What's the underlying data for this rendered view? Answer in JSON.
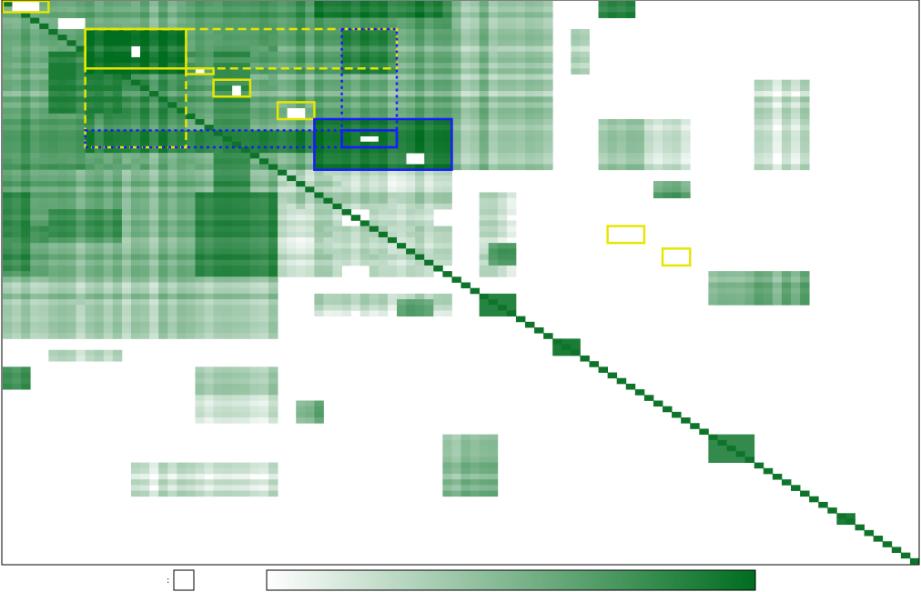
{
  "chart_data": {
    "type": "heatmap",
    "title": "",
    "xlabel": "",
    "ylabel": "",
    "n": 100,
    "colorscale": {
      "low": "#ffffff",
      "high": "#006d1f"
    },
    "value_range": [
      0,
      1
    ],
    "diagonal_value": 0.95,
    "blocks": [
      {
        "rows": [
          0,
          30
        ],
        "cols": [
          0,
          49
        ],
        "value": 0.55
      },
      {
        "rows": [
          0,
          30
        ],
        "cols": [
          49,
          58
        ],
        "value": 0.42
      },
      {
        "rows": [
          0,
          30
        ],
        "cols": [
          58,
          60
        ],
        "value": 0.3
      },
      {
        "rows": [
          0,
          5
        ],
        "cols": [
          20,
          49
        ],
        "value": 0.7
      },
      {
        "rows": [
          0,
          3
        ],
        "cols": [
          34,
          48
        ],
        "value": 0.85
      },
      {
        "rows": [
          5,
          13
        ],
        "cols": [
          9,
          20
        ],
        "value": 0.95
      },
      {
        "rows": [
          5,
          13
        ],
        "cols": [
          20,
          43
        ],
        "value": 0.62
      },
      {
        "rows": [
          5,
          13
        ],
        "cols": [
          37,
          43
        ],
        "value": 0.8
      },
      {
        "rows": [
          13,
          27
        ],
        "cols": [
          9,
          20
        ],
        "value": 0.72
      },
      {
        "rows": [
          13,
          27
        ],
        "cols": [
          20,
          34
        ],
        "value": 0.5
      },
      {
        "rows": [
          21,
          30
        ],
        "cols": [
          34,
          49
        ],
        "value": 0.9
      },
      {
        "rows": [
          23,
          27
        ],
        "cols": [
          9,
          34
        ],
        "value": 0.85
      },
      {
        "rows": [
          21,
          30
        ],
        "cols": [
          0,
          9
        ],
        "value": 0.7
      },
      {
        "rows": [
          30,
          37
        ],
        "cols": [
          9,
          49
        ],
        "value": 0.28
      },
      {
        "rows": [
          30,
          37
        ],
        "cols": [
          0,
          9
        ],
        "value": 0.15
      },
      {
        "rows": [
          40,
          43
        ],
        "cols": [
          0,
          5
        ],
        "value": 0.8
      },
      {
        "rows": [
          40,
          47
        ],
        "cols": [
          34,
          49
        ],
        "value": 0.3
      },
      {
        "rows": [
          43,
          47
        ],
        "cols": [
          53,
          56
        ],
        "value": 0.8
      },
      {
        "rows": [
          21,
          30
        ],
        "cols": [
          65,
          70
        ],
        "value": 0.45
      },
      {
        "rows": [
          21,
          30
        ],
        "cols": [
          70,
          75
        ],
        "value": 0.22
      },
      {
        "rows": [
          5,
          13
        ],
        "cols": [
          62,
          64
        ],
        "value": 0.25
      },
      {
        "rows": [
          0,
          3
        ],
        "cols": [
          65,
          69
        ],
        "value": 0.85
      },
      {
        "rows": [
          32,
          35
        ],
        "cols": [
          71,
          75
        ],
        "value": 0.65
      },
      {
        "rows": [
          48,
          54
        ],
        "cols": [
          77,
          88
        ],
        "value": 0.5
      },
      {
        "rows": [
          48,
          54
        ],
        "cols": [
          84,
          88
        ],
        "value": 0.35
      },
      {
        "rows": [
          14,
          30
        ],
        "cols": [
          82,
          88
        ],
        "value": 0.18
      },
      {
        "rows": [
          52,
          56
        ],
        "cols": [
          2,
          9
        ],
        "value": 0.18
      },
      {
        "rows": [
          52,
          56
        ],
        "cols": [
          34,
          49
        ],
        "value": 0.2
      }
    ],
    "white_cells": [
      {
        "rows": [
          0,
          2
        ],
        "cols": [
          1,
          4
        ]
      },
      {
        "rows": [
          3,
          5
        ],
        "cols": [
          6,
          9
        ]
      },
      {
        "rows": [
          8,
          10
        ],
        "cols": [
          14,
          15
        ]
      },
      {
        "rows": [
          12,
          13
        ],
        "cols": [
          21,
          22
        ]
      },
      {
        "rows": [
          15,
          17
        ],
        "cols": [
          25,
          26
        ]
      },
      {
        "rows": [
          19,
          21
        ],
        "cols": [
          31,
          33
        ]
      },
      {
        "rows": [
          24,
          25
        ],
        "cols": [
          39,
          41
        ]
      },
      {
        "rows": [
          27,
          29
        ],
        "cols": [
          44,
          46
        ]
      },
      {
        "rows": [
          41,
          42
        ],
        "cols": [
          66,
          69
        ]
      },
      {
        "rows": [
          44,
          46
        ],
        "cols": [
          72,
          74
        ]
      }
    ],
    "diagonal_blocks": [
      {
        "range": [
          52,
          56
        ],
        "value": 0.85
      },
      {
        "range": [
          60,
          63
        ],
        "value": 0.9
      },
      {
        "range": [
          77,
          82
        ],
        "value": 0.8
      },
      {
        "range": [
          91,
          93
        ],
        "value": 0.9
      }
    ],
    "highlight_boxes": [
      {
        "rows": [
          0,
          2
        ],
        "cols": [
          0,
          5
        ],
        "color": "#e6e600",
        "style": "solid"
      },
      {
        "rows": [
          5,
          12
        ],
        "cols": [
          9,
          20
        ],
        "color": "#e6e600",
        "style": "solid"
      },
      {
        "rows": [
          12,
          13
        ],
        "cols": [
          20,
          23
        ],
        "color": "#e6e600",
        "style": "solid"
      },
      {
        "rows": [
          14,
          17
        ],
        "cols": [
          23,
          27
        ],
        "color": "#e6e600",
        "style": "solid"
      },
      {
        "rows": [
          18,
          21
        ],
        "cols": [
          30,
          34
        ],
        "color": "#e6e600",
        "style": "solid"
      },
      {
        "rows": [
          5,
          26
        ],
        "cols": [
          9,
          20
        ],
        "color": "#e6e600",
        "style": "dashed"
      },
      {
        "rows": [
          5,
          12
        ],
        "cols": [
          9,
          43
        ],
        "color": "#e6e600",
        "style": "dashed"
      },
      {
        "rows": [
          5,
          26
        ],
        "cols": [
          37,
          43
        ],
        "color": "#1a1aff",
        "style": "dotted"
      },
      {
        "rows": [
          23,
          26
        ],
        "cols": [
          9,
          43
        ],
        "color": "#1a1aff",
        "style": "dotted"
      },
      {
        "rows": [
          21,
          30
        ],
        "cols": [
          34,
          49
        ],
        "color": "#1a1aff",
        "style": "solid"
      },
      {
        "rows": [
          23,
          26
        ],
        "cols": [
          37,
          43
        ],
        "color": "#1a1aff",
        "style": "solid"
      },
      {
        "rows": [
          40,
          43
        ],
        "cols": [
          66,
          70
        ],
        "color": "#e6e600",
        "style": "solid"
      },
      {
        "rows": [
          44,
          47
        ],
        "cols": [
          72,
          75
        ],
        "color": "#e6e600",
        "style": "solid"
      }
    ],
    "legend": {
      "marker_label": ":",
      "colorbar": {
        "from": "#ffffff",
        "to": "#006d1f"
      }
    }
  }
}
